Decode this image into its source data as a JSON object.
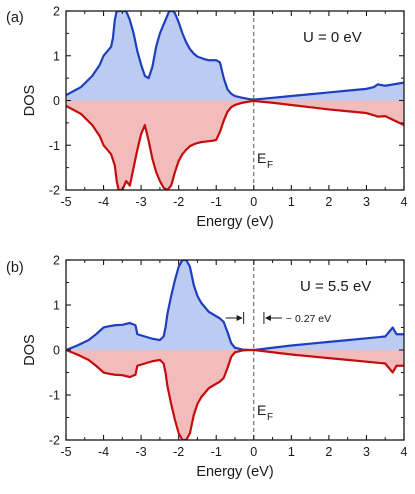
{
  "chart_data": [
    {
      "type": "area",
      "panel_label": "(a)",
      "annotation": "U = 0 eV",
      "fermi_label": "E",
      "fermi_sub": "F",
      "xlabel": "Energy (eV)",
      "ylabel": "DOS",
      "xlim": [
        -5,
        4
      ],
      "ylim": [
        -2,
        2
      ],
      "xticks": [
        -5,
        -4,
        -3,
        -2,
        -1,
        0,
        1,
        2,
        3,
        4
      ],
      "yticks": [
        -2,
        -1,
        0,
        1,
        2
      ],
      "fermi_level": 0,
      "up_color": "#1f3fbf",
      "up_fill": "#bccbf2",
      "down_color": "#c40d0d",
      "down_fill": "#f3bcbc",
      "up": {
        "x": [
          -5,
          -4.6,
          -4.3,
          -4.1,
          -4.0,
          -3.9,
          -3.8,
          -3.75,
          -3.7,
          -3.65,
          -3.6,
          -3.55,
          -3.5,
          -3.45,
          -3.4,
          -3.3,
          -3.2,
          -3.1,
          -3.0,
          -2.9,
          -2.8,
          -2.7,
          -2.6,
          -2.5,
          -2.4,
          -2.3,
          -2.25,
          -2.2,
          -2.15,
          -2.1,
          -2.0,
          -1.9,
          -1.8,
          -1.7,
          -1.6,
          -1.5,
          -1.4,
          -1.3,
          -1.2,
          -1.1,
          -1.0,
          -0.9,
          -0.8,
          -0.7,
          -0.6,
          -0.5,
          -0.3,
          -0.1,
          0,
          0.5,
          1.0,
          1.5,
          2.0,
          2.5,
          3.0,
          3.2,
          3.3,
          3.5,
          4.0
        ],
        "y": [
          0.12,
          0.3,
          0.55,
          0.8,
          1.0,
          1.1,
          1.2,
          1.4,
          1.8,
          2.0,
          2.0,
          2.0,
          2.0,
          2.0,
          2.0,
          1.8,
          1.5,
          1.1,
          0.8,
          0.55,
          0.5,
          0.75,
          1.2,
          1.5,
          1.7,
          1.9,
          2.0,
          2.0,
          2.0,
          1.95,
          1.75,
          1.5,
          1.3,
          1.15,
          1.05,
          0.98,
          0.95,
          0.92,
          0.9,
          0.9,
          0.9,
          0.85,
          0.5,
          0.25,
          0.15,
          0.1,
          0.06,
          0.03,
          0.02,
          0.06,
          0.1,
          0.14,
          0.18,
          0.22,
          0.26,
          0.3,
          0.36,
          0.33,
          0.4
        ]
      },
      "down": {
        "x": [
          -5,
          -4.6,
          -4.3,
          -4.1,
          -4.0,
          -3.9,
          -3.8,
          -3.7,
          -3.65,
          -3.6,
          -3.55,
          -3.5,
          -3.4,
          -3.3,
          -3.2,
          -3.1,
          -3.0,
          -2.9,
          -2.8,
          -2.7,
          -2.6,
          -2.5,
          -2.4,
          -2.3,
          -2.2,
          -2.1,
          -2.0,
          -1.9,
          -1.8,
          -1.7,
          -1.6,
          -1.5,
          -1.4,
          -1.3,
          -1.2,
          -1.1,
          -1.0,
          -0.9,
          -0.8,
          -0.7,
          -0.6,
          -0.5,
          -0.3,
          -0.1,
          0,
          0.5,
          1.0,
          1.5,
          2.0,
          2.5,
          3.0,
          3.2,
          3.3,
          3.5,
          4.0
        ],
        "y": [
          -0.12,
          -0.3,
          -0.55,
          -0.8,
          -1.0,
          -1.1,
          -1.2,
          -1.45,
          -1.8,
          -2.0,
          -2.0,
          -2.0,
          -1.8,
          -1.9,
          -1.5,
          -1.1,
          -0.75,
          -0.55,
          -0.9,
          -1.3,
          -1.6,
          -1.8,
          -1.95,
          -2.0,
          -1.9,
          -1.6,
          -1.35,
          -1.2,
          -1.1,
          -1.02,
          -0.98,
          -0.95,
          -0.93,
          -0.92,
          -0.91,
          -0.9,
          -0.88,
          -0.7,
          -0.45,
          -0.25,
          -0.15,
          -0.1,
          -0.05,
          -0.02,
          -0.01,
          -0.05,
          -0.1,
          -0.15,
          -0.2,
          -0.24,
          -0.28,
          -0.33,
          -0.36,
          -0.35,
          -0.55
        ]
      }
    },
    {
      "type": "area",
      "panel_label": "(b)",
      "annotation": "U = 5.5 eV",
      "fermi_label": "E",
      "fermi_sub": "F",
      "gap_label": "~ 0.27 eV",
      "xlabel": "Energy (eV)",
      "ylabel": "DOS",
      "xlim": [
        -5,
        4
      ],
      "ylim": [
        -2,
        2
      ],
      "xticks": [
        -5,
        -4,
        -3,
        -2,
        -1,
        0,
        1,
        2,
        3,
        4
      ],
      "yticks": [
        -2,
        -1,
        0,
        1,
        2
      ],
      "fermi_level": 0,
      "gap": [
        -0.27,
        0.27
      ],
      "up_color": "#1f3fbf",
      "up_fill": "#bccbf2",
      "down_color": "#c40d0d",
      "down_fill": "#f3bcbc",
      "up": {
        "x": [
          -5,
          -4.7,
          -4.4,
          -4.2,
          -4.0,
          -3.9,
          -3.7,
          -3.5,
          -3.3,
          -3.15,
          -3.1,
          -2.9,
          -2.7,
          -2.5,
          -2.4,
          -2.35,
          -2.3,
          -2.2,
          -2.1,
          -2.0,
          -1.9,
          -1.85,
          -1.8,
          -1.7,
          -1.6,
          -1.5,
          -1.4,
          -1.2,
          -1.0,
          -0.9,
          -0.8,
          -0.7,
          -0.6,
          -0.5,
          -0.3,
          -0.1,
          0,
          0.2,
          0.5,
          1.0,
          1.5,
          2.0,
          2.5,
          3.0,
          3.5,
          3.6,
          3.7,
          3.8,
          4.0
        ],
        "y": [
          0.0,
          0.1,
          0.22,
          0.35,
          0.5,
          0.52,
          0.55,
          0.56,
          0.6,
          0.55,
          0.35,
          0.3,
          0.25,
          0.22,
          0.3,
          0.5,
          0.8,
          1.2,
          1.55,
          1.85,
          2.0,
          2.0,
          2.0,
          1.85,
          1.45,
          1.2,
          1.05,
          0.85,
          0.75,
          0.7,
          0.62,
          0.4,
          0.15,
          0.05,
          0.01,
          0.0,
          0.0,
          0.02,
          0.05,
          0.1,
          0.14,
          0.18,
          0.22,
          0.26,
          0.3,
          0.4,
          0.5,
          0.35,
          0.35
        ]
      },
      "down": {
        "x": [
          -5,
          -4.7,
          -4.4,
          -4.2,
          -4.0,
          -3.9,
          -3.7,
          -3.5,
          -3.3,
          -3.15,
          -3.1,
          -2.9,
          -2.7,
          -2.5,
          -2.4,
          -2.35,
          -2.3,
          -2.2,
          -2.1,
          -2.0,
          -1.9,
          -1.85,
          -1.8,
          -1.7,
          -1.6,
          -1.5,
          -1.4,
          -1.2,
          -1.0,
          -0.9,
          -0.8,
          -0.7,
          -0.6,
          -0.5,
          -0.3,
          -0.1,
          0,
          0.2,
          0.5,
          1.0,
          1.5,
          2.0,
          2.5,
          3.0,
          3.5,
          3.6,
          3.7,
          3.8,
          4.0
        ],
        "y": [
          0.0,
          -0.1,
          -0.22,
          -0.35,
          -0.5,
          -0.52,
          -0.55,
          -0.56,
          -0.6,
          -0.55,
          -0.35,
          -0.3,
          -0.25,
          -0.22,
          -0.3,
          -0.5,
          -0.8,
          -1.2,
          -1.55,
          -1.85,
          -2.0,
          -2.0,
          -2.0,
          -1.85,
          -1.45,
          -1.2,
          -1.05,
          -0.85,
          -0.75,
          -0.7,
          -0.62,
          -0.4,
          -0.15,
          -0.05,
          -0.01,
          0.0,
          0.0,
          -0.02,
          -0.05,
          -0.1,
          -0.14,
          -0.18,
          -0.22,
          -0.26,
          -0.3,
          -0.4,
          -0.5,
          -0.35,
          -0.35
        ]
      }
    }
  ]
}
